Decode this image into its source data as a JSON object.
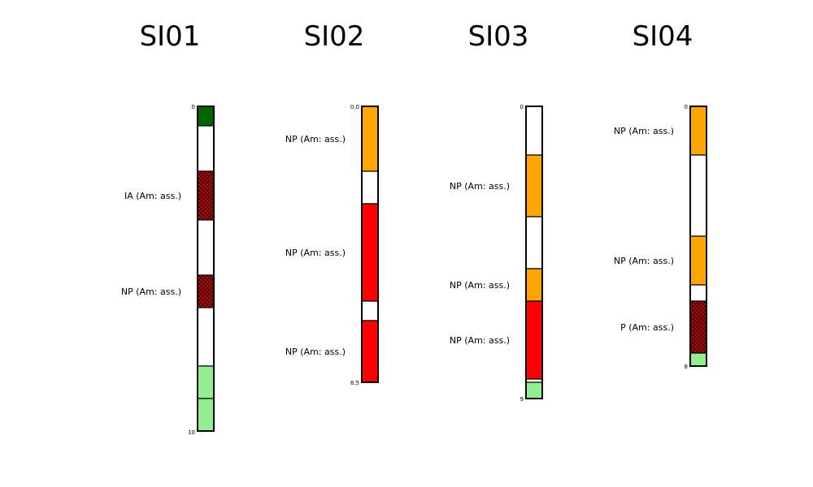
{
  "colors": {
    "white": "#ffffff",
    "dark_green": "#006400",
    "light_green": "#90ee90",
    "orange": "#ffa500",
    "red": "#ff0000",
    "hatched_red": "#cc0000"
  },
  "logs": [
    {
      "name": "SI01",
      "top_label": "0",
      "bottom_label": "10",
      "depth_max": 10,
      "layers": [
        {
          "from": 0,
          "to": 0.6,
          "fill": "dark_green"
        },
        {
          "from": 0.6,
          "to": 2.0,
          "fill": "white"
        },
        {
          "from": 2.0,
          "to": 3.5,
          "fill": "hatched_red",
          "label": "IA (Am: ass.)"
        },
        {
          "from": 3.5,
          "to": 5.2,
          "fill": "white"
        },
        {
          "from": 5.2,
          "to": 6.2,
          "fill": "hatched_red",
          "label": "NP (Am: ass.)"
        },
        {
          "from": 6.2,
          "to": 8.0,
          "fill": "white"
        },
        {
          "from": 8.0,
          "to": 9.0,
          "fill": "light_green"
        },
        {
          "from": 9.0,
          "to": 10.0,
          "fill": "light_green"
        }
      ]
    },
    {
      "name": "SI02",
      "top_label": "0.0",
      "bottom_label": "8.5",
      "depth_max": 8.5,
      "layers": [
        {
          "from": 0,
          "to": 2.0,
          "fill": "orange",
          "label": "NP (Am: ass.)"
        },
        {
          "from": 2.0,
          "to": 3.0,
          "fill": "white"
        },
        {
          "from": 3.0,
          "to": 6.0,
          "fill": "red",
          "label": "NP (Am: ass.)"
        },
        {
          "from": 6.0,
          "to": 6.6,
          "fill": "white"
        },
        {
          "from": 6.6,
          "to": 8.5,
          "fill": "red",
          "label": "NP (Am: ass.)"
        }
      ]
    },
    {
      "name": "SI03",
      "top_label": "0",
      "bottom_label": "9",
      "depth_max": 9,
      "layers": [
        {
          "from": 0,
          "to": 1.5,
          "fill": "white"
        },
        {
          "from": 1.5,
          "to": 3.4,
          "fill": "orange",
          "label": "NP (Am: ass.)"
        },
        {
          "from": 3.4,
          "to": 5.0,
          "fill": "white"
        },
        {
          "from": 5.0,
          "to": 6.0,
          "fill": "orange",
          "label": "NP (Am: ass.)"
        },
        {
          "from": 6.0,
          "to": 8.4,
          "fill": "red",
          "label": "NP (Am: ass.)"
        },
        {
          "from": 8.4,
          "to": 8.5,
          "fill": "white"
        },
        {
          "from": 8.5,
          "to": 9.0,
          "fill": "light_green"
        }
      ]
    },
    {
      "name": "SI04",
      "top_label": "0",
      "bottom_label": "8",
      "depth_max": 8,
      "layers": [
        {
          "from": 0,
          "to": 1.5,
          "fill": "orange",
          "label": "NP (Am: ass.)"
        },
        {
          "from": 1.5,
          "to": 4.0,
          "fill": "white"
        },
        {
          "from": 4.0,
          "to": 5.5,
          "fill": "orange",
          "label": "NP (Am: ass.)"
        },
        {
          "from": 5.5,
          "to": 6.0,
          "fill": "white"
        },
        {
          "from": 6.0,
          "to": 7.6,
          "fill": "hatched_red",
          "label": "P (Am: ass.)"
        },
        {
          "from": 7.6,
          "to": 8.0,
          "fill": "light_green"
        }
      ]
    }
  ]
}
